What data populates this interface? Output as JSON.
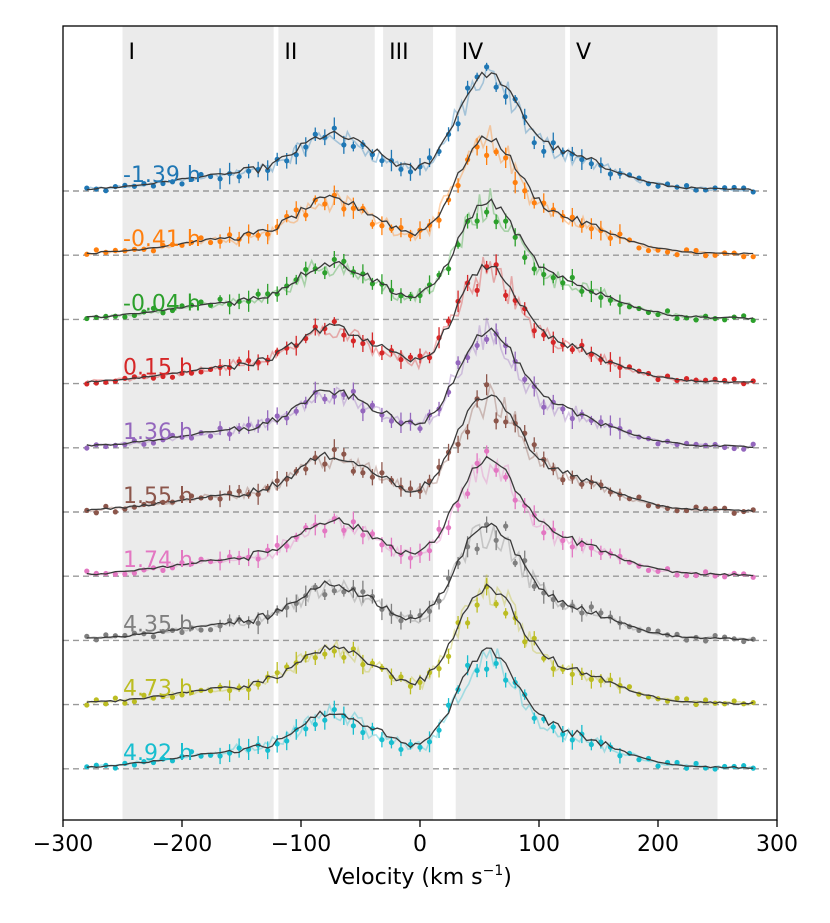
{
  "chart_data": {
    "type": "line",
    "title": "",
    "xlabel": "Velocity (km s",
    "xlabel_sup": "−1",
    "xlabel_close": ")",
    "ylabel": "",
    "xlim": [
      -300,
      300
    ],
    "xticks": [
      -300,
      -200,
      -100,
      0,
      100,
      200,
      300
    ],
    "xtick_labels": [
      "−300",
      "−200",
      "−100",
      "0",
      "100",
      "200",
      "300"
    ],
    "grid": false,
    "legend": "none",
    "regions": [
      {
        "label": "I",
        "x0": -250,
        "x1": -123
      },
      {
        "label": "II",
        "x0": -119,
        "x1": -38
      },
      {
        "label": "III",
        "x0": -31,
        "x1": 11
      },
      {
        "label": "IV",
        "x0": 30,
        "x1": 122
      },
      {
        "label": "V",
        "x0": 126,
        "x1": 250
      }
    ],
    "model_line_color": "#3a3a3a",
    "baseline_color": "#999999",
    "region_color": "#ebebeb",
    "series": [
      {
        "name": "-1.39 h",
        "color": "#1f77b4"
      },
      {
        "name": "-0.41 h",
        "color": "#ff7f0e"
      },
      {
        "name": "-0.04 h",
        "color": "#2ca02c"
      },
      {
        "name": "0.15 h",
        "color": "#d62728"
      },
      {
        "name": "1.36 h",
        "color": "#9467bd"
      },
      {
        "name": "1.55 h",
        "color": "#8c564b"
      },
      {
        "name": "1.74 h",
        "color": "#e377c2"
      },
      {
        "name": "4.35 h",
        "color": "#7f7f7f"
      },
      {
        "name": "4.73 h",
        "color": "#bcbd22"
      },
      {
        "name": "4.92 h",
        "color": "#17becf"
      }
    ]
  }
}
